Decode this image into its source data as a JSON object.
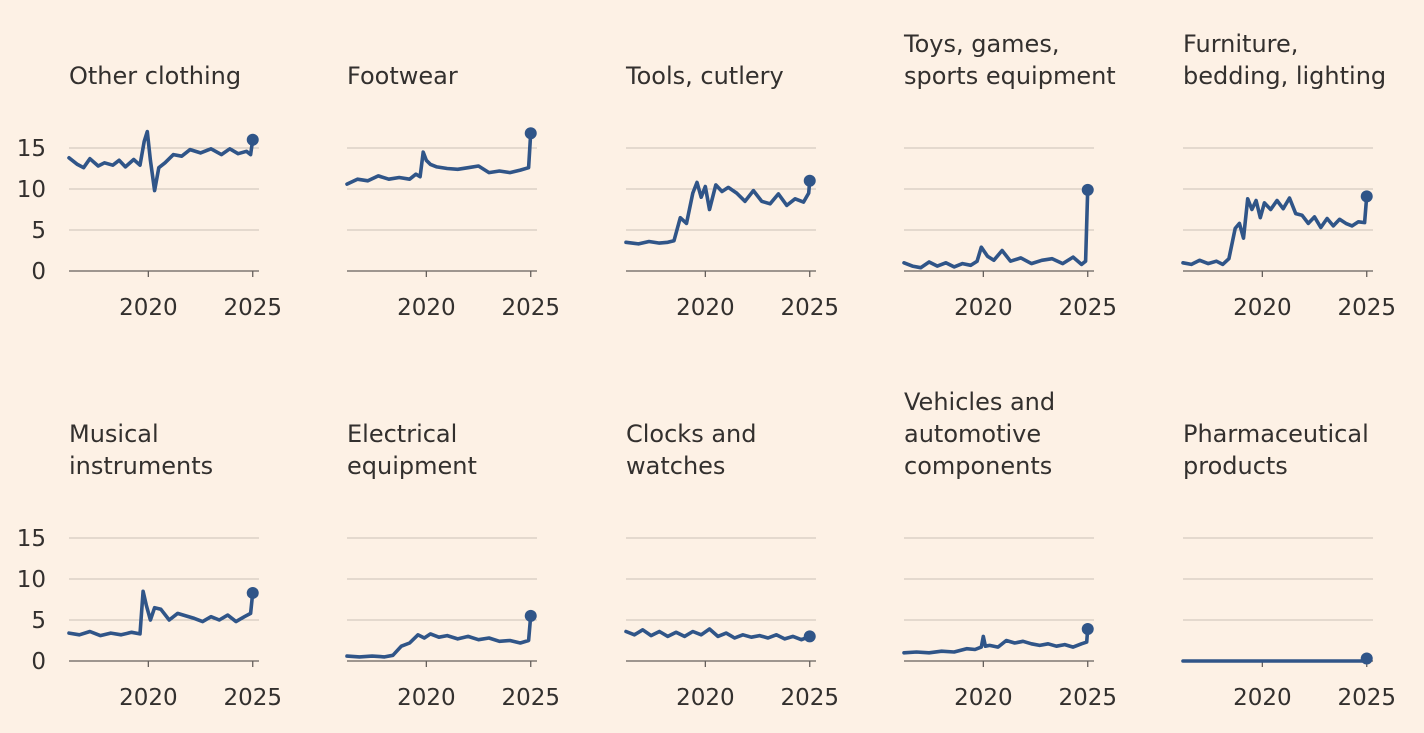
{
  "colors": {
    "background": "#fdf1e5",
    "line": "#305588",
    "grid": "#ccc1b7",
    "axis": "#66605c",
    "text": "#33302e"
  },
  "chart_data": {
    "type": "line",
    "layout": "small-multiples",
    "ylim": [
      0,
      18
    ],
    "xlim": [
      2016.2,
      2025.3
    ],
    "y_ticks": [
      0,
      5,
      10,
      15
    ],
    "y_tick_labels": [
      "0",
      "5",
      "10",
      "15"
    ],
    "x_ticks": [
      2020,
      2025
    ],
    "x_tick_labels": [
      "2020",
      "2025"
    ],
    "grid": "horizontal",
    "end_marker": "dot",
    "panels": [
      {
        "title_lines": [
          "Other clothing"
        ],
        "x": [
          2016.2,
          2016.6,
          2016.9,
          2017.2,
          2017.6,
          2017.9,
          2018.3,
          2018.6,
          2018.9,
          2019.3,
          2019.6,
          2019.8,
          2019.95,
          2020.1,
          2020.3,
          2020.5,
          2020.8,
          2021.2,
          2021.6,
          2022.0,
          2022.5,
          2023.0,
          2023.5,
          2023.9,
          2024.3,
          2024.7,
          2024.9,
          2025.0
        ],
        "y": [
          13.8,
          13.0,
          12.6,
          13.7,
          12.8,
          13.2,
          12.9,
          13.5,
          12.7,
          13.6,
          12.9,
          15.8,
          17.0,
          13.5,
          9.8,
          12.6,
          13.2,
          14.2,
          14.0,
          14.8,
          14.4,
          14.9,
          14.2,
          14.9,
          14.3,
          14.6,
          14.2,
          16.0
        ]
      },
      {
        "title_lines": [
          "Footwear"
        ],
        "x": [
          2016.2,
          2016.7,
          2017.2,
          2017.7,
          2018.2,
          2018.7,
          2019.2,
          2019.5,
          2019.7,
          2019.85,
          2020.0,
          2020.2,
          2020.5,
          2021.0,
          2021.5,
          2022.0,
          2022.5,
          2023.0,
          2023.5,
          2024.0,
          2024.5,
          2024.9,
          2025.0
        ],
        "y": [
          10.6,
          11.2,
          11.0,
          11.6,
          11.2,
          11.4,
          11.2,
          11.8,
          11.5,
          14.5,
          13.5,
          13.0,
          12.7,
          12.5,
          12.4,
          12.6,
          12.8,
          12.0,
          12.2,
          12.0,
          12.3,
          12.6,
          16.8
        ]
      },
      {
        "title_lines": [
          "Tools, cutlery"
        ],
        "x": [
          2016.2,
          2016.8,
          2017.3,
          2017.8,
          2018.2,
          2018.5,
          2018.8,
          2019.1,
          2019.4,
          2019.6,
          2019.8,
          2020.0,
          2020.2,
          2020.5,
          2020.8,
          2021.1,
          2021.5,
          2021.9,
          2022.3,
          2022.7,
          2023.1,
          2023.5,
          2023.9,
          2024.3,
          2024.7,
          2024.95,
          2025.0
        ],
        "y": [
          3.5,
          3.3,
          3.6,
          3.4,
          3.5,
          3.7,
          6.5,
          5.8,
          9.5,
          10.8,
          9.0,
          10.3,
          7.5,
          10.5,
          9.7,
          10.2,
          9.5,
          8.5,
          9.8,
          8.5,
          8.2,
          9.4,
          8.0,
          8.8,
          8.4,
          9.5,
          11.0
        ]
      },
      {
        "title_lines": [
          "Toys, games,",
          "sports equipment"
        ],
        "x": [
          2016.2,
          2016.6,
          2017.0,
          2017.4,
          2017.8,
          2018.2,
          2018.6,
          2019.0,
          2019.4,
          2019.7,
          2019.9,
          2020.2,
          2020.5,
          2020.9,
          2021.3,
          2021.8,
          2022.3,
          2022.8,
          2023.3,
          2023.8,
          2024.3,
          2024.7,
          2024.9,
          2025.0
        ],
        "y": [
          1.0,
          0.6,
          0.4,
          1.1,
          0.6,
          1.0,
          0.5,
          0.9,
          0.7,
          1.2,
          2.9,
          1.8,
          1.3,
          2.5,
          1.2,
          1.6,
          0.9,
          1.3,
          1.5,
          0.9,
          1.7,
          0.8,
          1.2,
          9.9
        ]
      },
      {
        "title_lines": [
          "Furniture,",
          "bedding, lighting"
        ],
        "x": [
          2016.2,
          2016.6,
          2017.0,
          2017.4,
          2017.8,
          2018.1,
          2018.4,
          2018.7,
          2018.9,
          2019.1,
          2019.3,
          2019.5,
          2019.7,
          2019.9,
          2020.1,
          2020.4,
          2020.7,
          2021.0,
          2021.3,
          2021.6,
          2021.9,
          2022.2,
          2022.5,
          2022.8,
          2023.1,
          2023.4,
          2023.7,
          2024.0,
          2024.3,
          2024.6,
          2024.9,
          2025.0
        ],
        "y": [
          1.0,
          0.8,
          1.3,
          0.9,
          1.2,
          0.8,
          1.5,
          5.2,
          5.8,
          4.0,
          8.8,
          7.5,
          8.6,
          6.5,
          8.3,
          7.5,
          8.6,
          7.6,
          8.9,
          7.0,
          6.8,
          5.8,
          6.6,
          5.3,
          6.4,
          5.5,
          6.3,
          5.8,
          5.5,
          6.0,
          5.9,
          9.1
        ]
      },
      {
        "title_lines": [
          "Musical",
          "instruments"
        ],
        "x": [
          2016.2,
          2016.7,
          2017.2,
          2017.7,
          2018.2,
          2018.7,
          2019.2,
          2019.6,
          2019.75,
          2019.9,
          2020.1,
          2020.3,
          2020.6,
          2021.0,
          2021.4,
          2021.8,
          2022.2,
          2022.6,
          2023.0,
          2023.4,
          2023.8,
          2024.2,
          2024.6,
          2024.9,
          2025.0
        ],
        "y": [
          3.4,
          3.2,
          3.6,
          3.1,
          3.4,
          3.2,
          3.5,
          3.3,
          8.5,
          6.8,
          5.0,
          6.5,
          6.3,
          5.0,
          5.8,
          5.5,
          5.2,
          4.8,
          5.4,
          5.0,
          5.6,
          4.8,
          5.4,
          5.8,
          8.3
        ]
      },
      {
        "title_lines": [
          "Electrical",
          "equipment"
        ],
        "x": [
          2016.2,
          2016.8,
          2017.4,
          2018.0,
          2018.4,
          2018.8,
          2019.2,
          2019.6,
          2019.9,
          2020.2,
          2020.6,
          2021.0,
          2021.5,
          2022.0,
          2022.5,
          2023.0,
          2023.5,
          2024.0,
          2024.5,
          2024.9,
          2025.0
        ],
        "y": [
          0.6,
          0.5,
          0.6,
          0.5,
          0.7,
          1.8,
          2.2,
          3.2,
          2.8,
          3.3,
          2.9,
          3.1,
          2.7,
          3.0,
          2.6,
          2.8,
          2.4,
          2.5,
          2.2,
          2.5,
          5.5
        ]
      },
      {
        "title_lines": [
          "Clocks and",
          "watches"
        ],
        "x": [
          2016.2,
          2016.6,
          2017.0,
          2017.4,
          2017.8,
          2018.2,
          2018.6,
          2019.0,
          2019.4,
          2019.8,
          2020.2,
          2020.6,
          2021.0,
          2021.4,
          2021.8,
          2022.2,
          2022.6,
          2023.0,
          2023.4,
          2023.8,
          2024.2,
          2024.6,
          2025.0
        ],
        "y": [
          3.6,
          3.2,
          3.8,
          3.1,
          3.6,
          3.0,
          3.5,
          3.0,
          3.6,
          3.2,
          3.9,
          3.0,
          3.4,
          2.8,
          3.2,
          2.9,
          3.1,
          2.8,
          3.2,
          2.7,
          3.0,
          2.6,
          3.0
        ]
      },
      {
        "title_lines": [
          "Vehicles and",
          "automotive",
          "components"
        ],
        "x": [
          2016.2,
          2016.8,
          2017.4,
          2018.0,
          2018.6,
          2019.2,
          2019.6,
          2019.9,
          2020.0,
          2020.1,
          2020.3,
          2020.7,
          2021.1,
          2021.5,
          2021.9,
          2022.3,
          2022.7,
          2023.1,
          2023.5,
          2023.9,
          2024.3,
          2024.7,
          2024.95,
          2025.0
        ],
        "y": [
          1.0,
          1.1,
          1.0,
          1.2,
          1.1,
          1.5,
          1.4,
          1.7,
          3.0,
          1.8,
          1.9,
          1.7,
          2.5,
          2.2,
          2.4,
          2.1,
          1.9,
          2.1,
          1.8,
          2.0,
          1.7,
          2.1,
          2.3,
          3.9
        ]
      },
      {
        "title_lines": [
          "Pharmaceutical",
          "products"
        ],
        "x": [
          2016.2,
          2018.0,
          2020.0,
          2022.0,
          2024.0,
          2024.9,
          2025.0
        ],
        "y": [
          0.0,
          0.0,
          0.0,
          0.0,
          0.0,
          0.0,
          0.3
        ]
      }
    ]
  }
}
